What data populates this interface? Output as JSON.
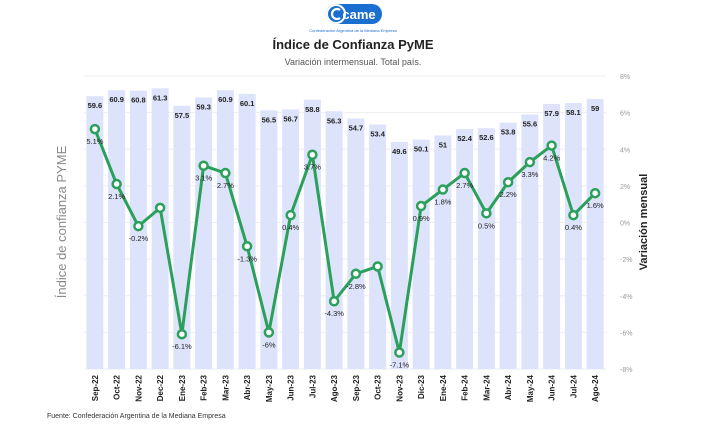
{
  "logo": {
    "text": "came",
    "tagline": "Confederación Argentina de la Mediana Empresa",
    "color": "#1a6fd0"
  },
  "header": {
    "title": "Índice de Confianza PyME",
    "subtitle": "Variación intermensual. Total país."
  },
  "source": "Fuente: Confederación Argentina de la Mediana Empresa",
  "chart_data": {
    "type": "bar+line",
    "categories": [
      "Sep-22",
      "Oct-22",
      "Nov-22",
      "Dec-22",
      "Ene-23",
      "Feb-23",
      "Mar-23",
      "Abr-23",
      "May-23",
      "Jun-23",
      "Jul-23",
      "Ago-23",
      "Sep-23",
      "Oct-23",
      "Nov-23",
      "Dic-23",
      "Ene-24",
      "Feb-24",
      "Mar-24",
      "Abr-24",
      "May-24",
      "Jun-24",
      "Jul-24",
      "Ago-24"
    ],
    "bar_series": {
      "values": [
        59.6,
        60.9,
        60.8,
        61.3,
        57.5,
        59.3,
        60.9,
        60.1,
        56.5,
        56.7,
        58.8,
        56.3,
        54.7,
        53.4,
        49.6,
        50.1,
        51,
        52.4,
        52.6,
        53.8,
        55.6,
        57.9,
        58.1,
        59
      ],
      "labels": [
        "59.6",
        "60.9",
        "60.8",
        "61.3",
        "57.5",
        "59.3",
        "60.9",
        "60.1",
        "56.5",
        "56.7",
        "58.8",
        "56.3",
        "54.7",
        "53.4",
        "49.6",
        "50.1",
        "51",
        "52.4",
        "52.6",
        "53.8",
        "55.6",
        "57.9",
        "58.1",
        "59"
      ],
      "color": "#dde3fb",
      "axis_label": "Índice de confianza PYME",
      "ylim": [
        0,
        64
      ]
    },
    "line_series": {
      "values": [
        5.1,
        2.1,
        -0.2,
        0.8,
        -6.1,
        3.1,
        2.7,
        -1.3,
        -6,
        0.4,
        3.7,
        -4.3,
        -2.8,
        -2.4,
        -7.1,
        0.9,
        1.8,
        2.7,
        0.5,
        2.2,
        3.3,
        4.2,
        0.4,
        1.6
      ],
      "labels": [
        "5.1%",
        "2.1%",
        "-0.2%",
        "",
        "-6.1%",
        "3.1%",
        "2.7%",
        "-1.3%",
        "-6%",
        "0.4%",
        "3.7%",
        "-4.3%",
        "-2.8%",
        "",
        "-7.1%",
        "0.9%",
        "1.8%",
        "2.7%",
        "0.5%",
        "2.2%",
        "3.3%",
        "4.2%",
        "0.4%",
        "1.6%"
      ],
      "color": "#2aa05a",
      "axis_label": "Variación mensual",
      "ylim": [
        -8,
        8
      ],
      "ticks": [
        "8%",
        "6%",
        "4%",
        "2%",
        "0%",
        "-2%",
        "-4%",
        "-6%",
        "-8%"
      ]
    },
    "grid": true
  }
}
